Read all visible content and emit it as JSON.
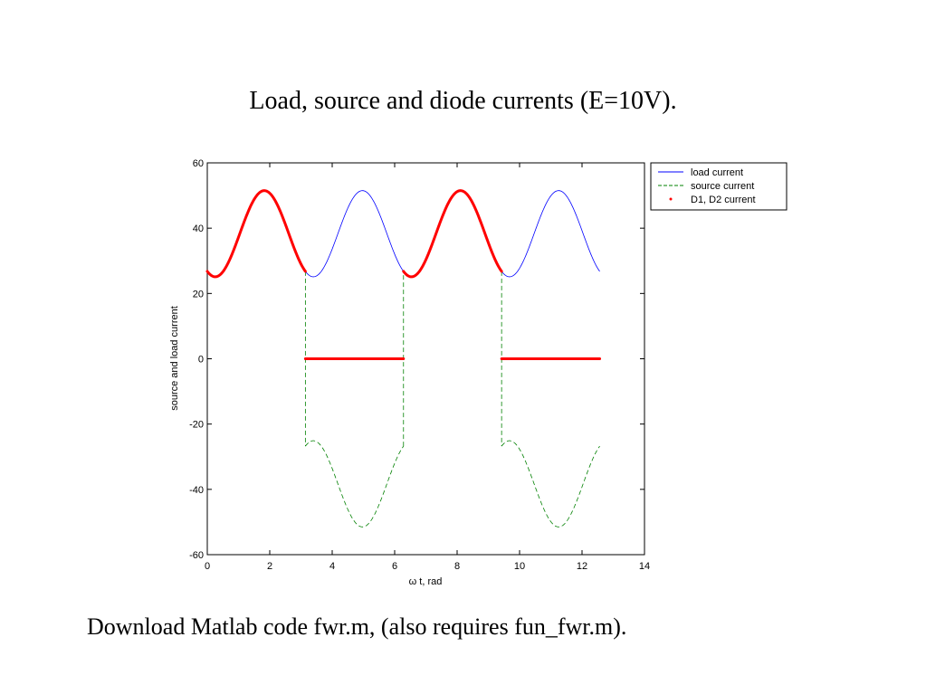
{
  "slide": {
    "title": "Load, source and diode currents (E=10V).",
    "footer": "Download Matlab code fwr.m, (also requires fun_fwr.m)."
  },
  "chart_data": {
    "type": "line",
    "xlabel": "ω t, rad",
    "ylabel": "source and load current",
    "xlim": [
      0,
      14
    ],
    "ylim": [
      -60,
      60
    ],
    "xticks": [
      0,
      2,
      4,
      6,
      8,
      10,
      12,
      14
    ],
    "yticks": [
      -60,
      -40,
      -20,
      0,
      20,
      40,
      60
    ],
    "grid": false,
    "legend_position": "outside-top-right",
    "model": {
      "offset": 38.3,
      "amplitude": 13.2,
      "omega_period": 3.14159,
      "x_end": 12.566
    },
    "series": [
      {
        "name": "load current",
        "color": "#0000ff",
        "style": "solid"
      },
      {
        "name": "source current",
        "color": "#008000",
        "style": "dashed"
      },
      {
        "name": "D1, D2 current",
        "color": "#ff0000",
        "style": "dots"
      }
    ],
    "key_points": [
      {
        "x": 0,
        "y": 32.8
      },
      {
        "x": 0.49,
        "y": 25.1
      },
      {
        "x": 2.2,
        "y": 51.5
      },
      {
        "x": 3.14,
        "y": 32.8
      },
      {
        "x": 3.14,
        "y": -32.8
      },
      {
        "x": 3.63,
        "y": -25.1
      },
      {
        "x": 5.34,
        "y": -51.5
      },
      {
        "x": 6.28,
        "y": -32.8
      },
      {
        "x": 12.566,
        "y": 32.8
      }
    ]
  }
}
